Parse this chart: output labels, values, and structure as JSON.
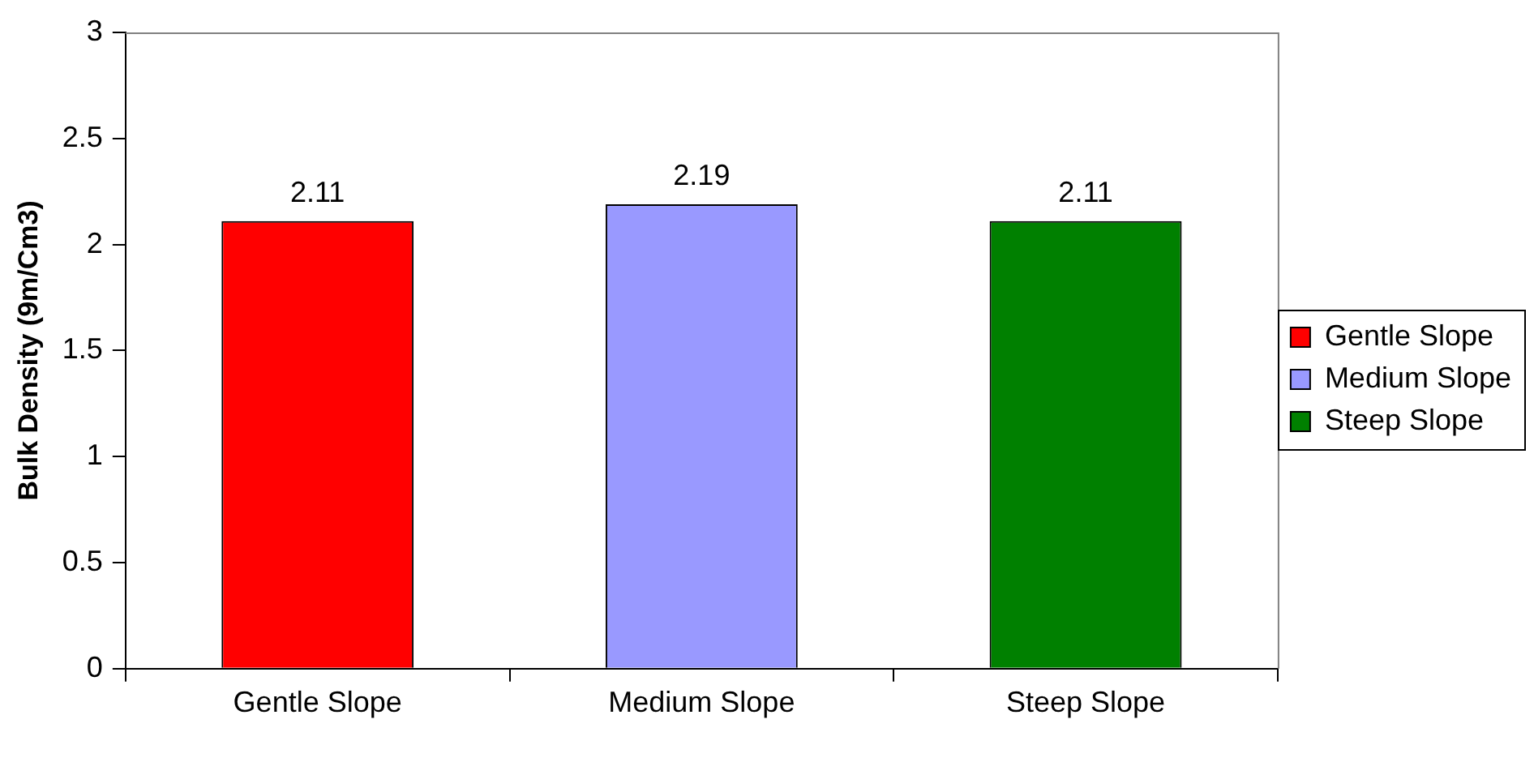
{
  "chart_data": {
    "type": "bar",
    "ylabel": "Bulk Density (9m/Cm3)",
    "categories": [
      "Gentle Slope",
      "Medium Slope",
      "Steep Slope"
    ],
    "series": [
      {
        "name": "Gentle Slope",
        "color": "#ff0000",
        "values": [
          2.11,
          null,
          null
        ]
      },
      {
        "name": "Medium Slope",
        "color": "#9999ff",
        "values": [
          null,
          2.19,
          null
        ]
      },
      {
        "name": "Steep Slope",
        "color": "#008000",
        "values": [
          null,
          null,
          2.11
        ]
      }
    ],
    "ylim": [
      0,
      3
    ],
    "yticks": [
      0,
      0.5,
      1,
      1.5,
      2,
      2.5,
      3
    ],
    "grid": false,
    "legend": "right",
    "data_labels": true
  }
}
